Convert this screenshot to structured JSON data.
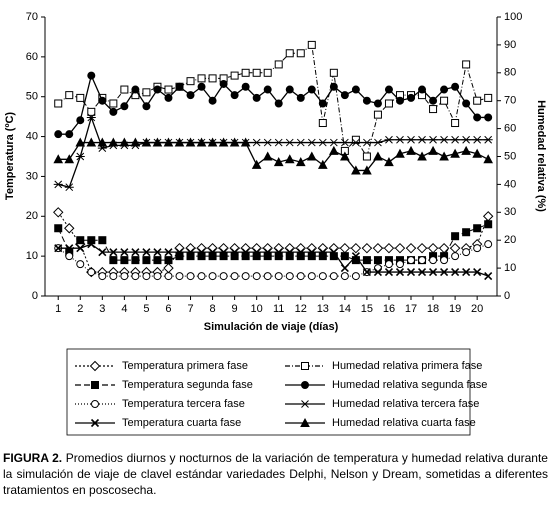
{
  "chart_data": {
    "type": "line",
    "x_label": "Simulación de viaje (días)",
    "y_label": "Temperatura (ºC)",
    "y2_label": "Humedad relativa (%)",
    "x": [
      1,
      1.5,
      2,
      2.5,
      3,
      3.5,
      4,
      4.5,
      5,
      5.5,
      6,
      6.5,
      7,
      7.5,
      8,
      8.5,
      9,
      9.5,
      10,
      10.5,
      11,
      11.5,
      12,
      12.5,
      13,
      13.5,
      14,
      14.5,
      15,
      15.5,
      16,
      16.5,
      17,
      17.5,
      18,
      18.5,
      19,
      19.5,
      20,
      20.5
    ],
    "xlim": [
      0.4,
      20.9
    ],
    "xticks": [
      1,
      2,
      3,
      4,
      5,
      6,
      7,
      8,
      9,
      10,
      11,
      12,
      13,
      14,
      15,
      16,
      17,
      18,
      19,
      20
    ],
    "ylim": [
      0,
      70
    ],
    "yticks": [
      0,
      10,
      20,
      30,
      40,
      50,
      60,
      70
    ],
    "y2lim": [
      0,
      100
    ],
    "y2ticks": [
      0,
      10,
      20,
      30,
      40,
      50,
      60,
      70,
      80,
      90,
      100
    ],
    "series": [
      {
        "name": "Temperatura primera fase",
        "color": "#000000",
        "marker": "diamond",
        "dash": "2,2",
        "fill": "none",
        "values": [
          21,
          17,
          13,
          6,
          6,
          6,
          6,
          6,
          6,
          6,
          7,
          12,
          12,
          12,
          12,
          12,
          12,
          12,
          12,
          12,
          12,
          12,
          12,
          12,
          12,
          12,
          12,
          12,
          12,
          12,
          12,
          12,
          12,
          12,
          12,
          12,
          12,
          12,
          13,
          20
        ]
      },
      {
        "name": "Temperatura segunda fase",
        "color": "#000000",
        "marker": "square",
        "dash": "6,3",
        "fill": "filled",
        "values": [
          17,
          11,
          14,
          14,
          14,
          9,
          9,
          9,
          9,
          9,
          9,
          10,
          10,
          10,
          10,
          10,
          10,
          10,
          10,
          10,
          10,
          10,
          10,
          10,
          10,
          10,
          10,
          9,
          9,
          9,
          9,
          9,
          9,
          9,
          10,
          10,
          15,
          16,
          17,
          18
        ]
      },
      {
        "name": "Temperatura tercera fase",
        "color": "#000000",
        "marker": "circle",
        "dash": "1,2",
        "fill": "none",
        "values": [
          12,
          10,
          8,
          6,
          5,
          5,
          5,
          5,
          5,
          5,
          5,
          5,
          5,
          5,
          5,
          5,
          5,
          5,
          5,
          5,
          5,
          5,
          5,
          5,
          5,
          5,
          5,
          5,
          6,
          7,
          8,
          8,
          9,
          9,
          9,
          9,
          10,
          11,
          12,
          13
        ]
      },
      {
        "name": "Temperatura cuarta fase",
        "color": "#000000",
        "marker": "x",
        "dash": "none",
        "fill": "none",
        "values": [
          12,
          12,
          12,
          13,
          11,
          11,
          11,
          11,
          11,
          11,
          11,
          11,
          11,
          11,
          11,
          11,
          11,
          11,
          11,
          11,
          11,
          11,
          11,
          11,
          11,
          11,
          7,
          10,
          6,
          6,
          6,
          6,
          6,
          6,
          6,
          6,
          6,
          6,
          6,
          5
        ]
      },
      {
        "name": "Humedad relativa primera fase",
        "color": "#000000",
        "marker": "square",
        "dash": "5,2,1,2",
        "fill": "none",
        "axis": "y2",
        "values": [
          69,
          72,
          71,
          66,
          71,
          69,
          74,
          72,
          73,
          75,
          74,
          75,
          77,
          78,
          78,
          78,
          79,
          80,
          80,
          80,
          83,
          87,
          87,
          90,
          62,
          80,
          52,
          56,
          50,
          65,
          69,
          72,
          72,
          72,
          67,
          70,
          62,
          83,
          70,
          71
        ]
      },
      {
        "name": "Humedad relativa segunda fase",
        "color": "#000000",
        "marker": "circle",
        "dash": "none",
        "fill": "filled",
        "axis": "y2",
        "values": [
          58,
          58,
          63,
          79,
          70,
          66,
          68,
          74,
          68,
          74,
          71,
          75,
          72,
          75,
          70,
          76,
          72,
          75,
          71,
          74,
          69,
          74,
          71,
          74,
          69,
          75,
          72,
          74,
          70,
          69,
          74,
          70,
          71,
          74,
          70,
          74,
          75,
          69,
          64,
          64
        ]
      },
      {
        "name": "Humedad relativa tercera fase",
        "color": "#000000",
        "marker": "star",
        "dash": "none",
        "fill": "none",
        "axis": "y2",
        "values": [
          40,
          39,
          50,
          64,
          53,
          54,
          54,
          54,
          55,
          55,
          55,
          55,
          55,
          55,
          55,
          55,
          55,
          55,
          55,
          55,
          55,
          55,
          55,
          55,
          55,
          55,
          55,
          55,
          55,
          55,
          56,
          56,
          56,
          56,
          56,
          56,
          56,
          56,
          56,
          56
        ]
      },
      {
        "name": "Humedad relativa cuarta fase",
        "color": "#000000",
        "marker": "triangle",
        "dash": "none",
        "fill": "filled",
        "axis": "y2",
        "values": [
          49,
          49,
          55,
          55,
          55,
          55,
          55,
          55,
          55,
          55,
          55,
          55,
          55,
          55,
          55,
          55,
          55,
          55,
          47,
          50,
          48,
          49,
          48,
          50,
          47,
          52,
          50,
          45,
          45,
          50,
          48,
          51,
          52,
          50,
          52,
          50,
          51,
          52,
          51,
          49
        ]
      }
    ],
    "figure_label": "FIGURA 2.",
    "caption": "Promedios diurnos y nocturnos de la variación de temperatura y humedad relativa durante la simulación de viaje de clavel estándar variedades Delphi, Nelson y Dream, sometidas a diferentes tratamientos en poscosecha."
  }
}
